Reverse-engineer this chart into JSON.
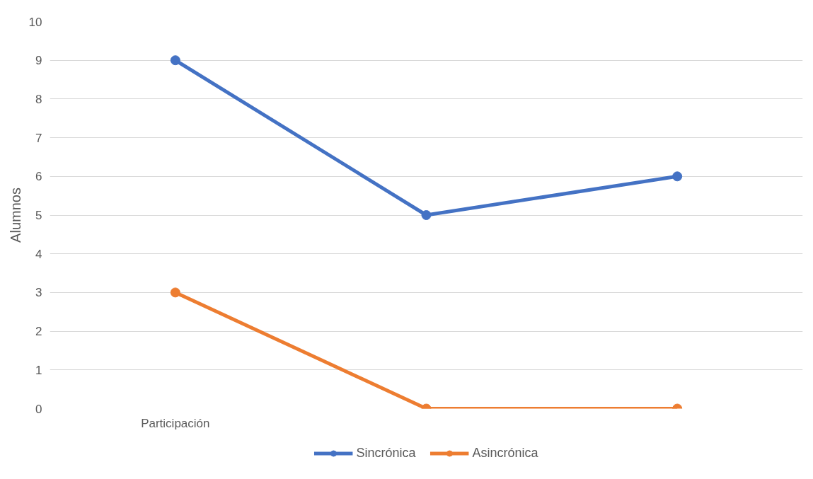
{
  "chart_data": {
    "type": "line",
    "ylabel": "Alumnos",
    "categories": [
      "Participación",
      null,
      null
    ],
    "series": [
      {
        "name": "Sincrónica",
        "color": "#4472c4",
        "values": [
          9,
          5,
          6
        ]
      },
      {
        "name": "Asincrónica",
        "color": "#ed7d31",
        "values": [
          3,
          0,
          0
        ]
      }
    ],
    "ylim": [
      0,
      10
    ],
    "yticks": [
      0,
      1,
      2,
      3,
      4,
      5,
      6,
      7,
      8,
      9,
      10
    ],
    "grid": "y",
    "legend": "bottom",
    "marker": "circle",
    "line_style": "solid"
  }
}
